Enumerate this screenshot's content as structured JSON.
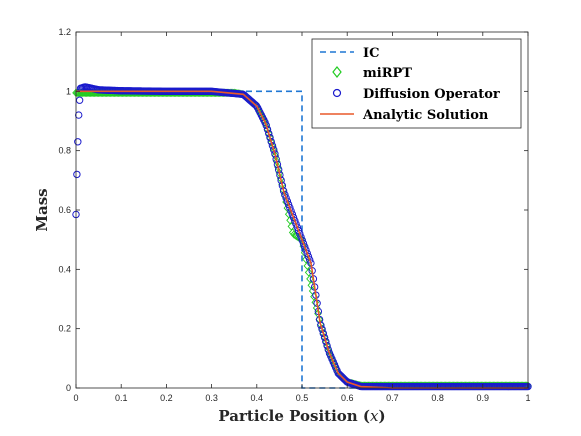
{
  "chart_data": {
    "type": "line",
    "xlabel_text": "Particle Position (",
    "xlabel_var": "x",
    "xlabel_close": ")",
    "ylabel": "Mass",
    "xlim": [
      0,
      1
    ],
    "ylim": [
      0,
      1.2
    ],
    "x_ticks": [
      "0",
      "0.1",
      "0.2",
      "0.3",
      "0.4",
      "0.5",
      "0.6",
      "0.7",
      "0.8",
      "0.9",
      "1"
    ],
    "y_ticks": [
      "0",
      "0.2",
      "0.4",
      "0.6",
      "0.8",
      "1",
      "1.2"
    ],
    "x_tick_values": [
      0,
      0.1,
      0.2,
      0.3,
      0.4,
      0.5,
      0.6,
      0.7,
      0.8,
      0.9,
      1
    ],
    "y_tick_values": [
      0,
      0.2,
      0.4,
      0.6,
      0.8,
      1,
      1.2
    ],
    "legend_position": "top-right",
    "grid": false,
    "series": [
      {
        "name": "IC",
        "style": "dashed-line",
        "color": "#1f77d4",
        "x": [
          0,
          0.5,
          0.5,
          1
        ],
        "y": [
          1,
          1,
          0,
          0
        ]
      },
      {
        "name": "miRPT",
        "style": "diamond-markers",
        "color": "#22cc22",
        "x": [
          0,
          0.05,
          0.1,
          0.15,
          0.2,
          0.25,
          0.3,
          0.35,
          0.37,
          0.4,
          0.42,
          0.44,
          0.46,
          0.48,
          0.5,
          0.52,
          0.54,
          0.56,
          0.58,
          0.6,
          0.63,
          0.7,
          0.8,
          0.9,
          1
        ],
        "y": [
          0.995,
          0.995,
          0.995,
          0.995,
          0.995,
          0.995,
          0.995,
          0.995,
          0.99,
          0.95,
          0.89,
          0.79,
          0.66,
          0.52,
          0.5,
          0.35,
          0.22,
          0.12,
          0.05,
          0.02,
          0.008,
          0.008,
          0.008,
          0.008,
          0.008
        ]
      },
      {
        "name": "Diffusion Operator",
        "style": "circle-markers",
        "color": "#1a1acc",
        "x": [
          0,
          0.002,
          0.004,
          0.006,
          0.008,
          0.01,
          0.02,
          0.05,
          0.1,
          0.2,
          0.3,
          0.37,
          0.4,
          0.42,
          0.44,
          0.46,
          0.48,
          0.5,
          0.52,
          0.54,
          0.56,
          0.58,
          0.6,
          0.63,
          0.7,
          0.8,
          0.9,
          1
        ],
        "y": [
          0.585,
          0.72,
          0.83,
          0.92,
          0.97,
          1.01,
          1.015,
          1.005,
          1.002,
          1.0,
          1.0,
          0.99,
          0.95,
          0.89,
          0.79,
          0.66,
          0.58,
          0.5,
          0.42,
          0.22,
          0.12,
          0.05,
          0.02,
          0.005,
          0.005,
          0.005,
          0.005,
          0.005
        ]
      },
      {
        "name": "Analytic Solution",
        "style": "solid-line",
        "color": "#e8582a",
        "x": [
          0,
          0.1,
          0.2,
          0.3,
          0.37,
          0.4,
          0.42,
          0.44,
          0.46,
          0.48,
          0.5,
          0.52,
          0.54,
          0.56,
          0.58,
          0.6,
          0.63,
          0.7,
          0.8,
          0.9,
          1
        ],
        "y": [
          1,
          1,
          1,
          1,
          0.99,
          0.95,
          0.89,
          0.79,
          0.66,
          0.58,
          0.5,
          0.42,
          0.22,
          0.12,
          0.05,
          0.02,
          0.005,
          0,
          0,
          0,
          0
        ]
      }
    ]
  }
}
